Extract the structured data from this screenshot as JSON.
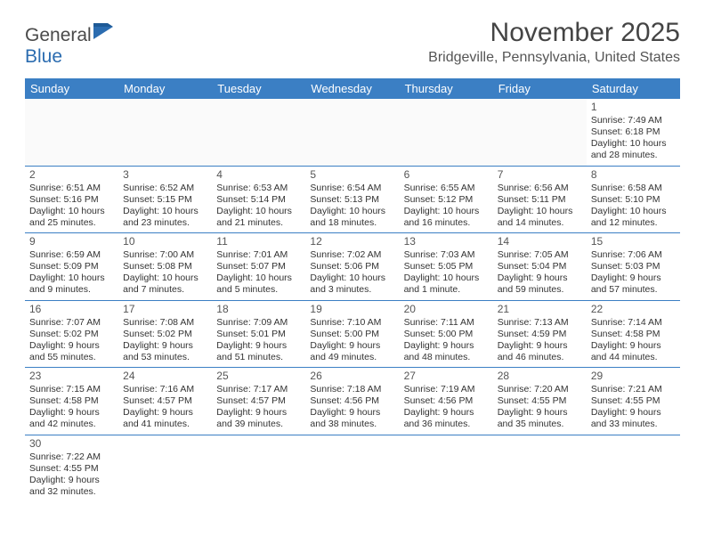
{
  "logo": {
    "text1": "General",
    "text2": "Blue"
  },
  "title": "November 2025",
  "location": "Bridgeville, Pennsylvania, United States",
  "colors": {
    "header_bg": "#3b7fc4",
    "text": "#333",
    "title": "#444"
  },
  "day_names": [
    "Sunday",
    "Monday",
    "Tuesday",
    "Wednesday",
    "Thursday",
    "Friday",
    "Saturday"
  ],
  "weeks": [
    [
      null,
      null,
      null,
      null,
      null,
      null,
      {
        "n": "1",
        "sr": "Sunrise: 7:49 AM",
        "ss": "Sunset: 6:18 PM",
        "dl": "Daylight: 10 hours and 28 minutes."
      }
    ],
    [
      {
        "n": "2",
        "sr": "Sunrise: 6:51 AM",
        "ss": "Sunset: 5:16 PM",
        "dl": "Daylight: 10 hours and 25 minutes."
      },
      {
        "n": "3",
        "sr": "Sunrise: 6:52 AM",
        "ss": "Sunset: 5:15 PM",
        "dl": "Daylight: 10 hours and 23 minutes."
      },
      {
        "n": "4",
        "sr": "Sunrise: 6:53 AM",
        "ss": "Sunset: 5:14 PM",
        "dl": "Daylight: 10 hours and 21 minutes."
      },
      {
        "n": "5",
        "sr": "Sunrise: 6:54 AM",
        "ss": "Sunset: 5:13 PM",
        "dl": "Daylight: 10 hours and 18 minutes."
      },
      {
        "n": "6",
        "sr": "Sunrise: 6:55 AM",
        "ss": "Sunset: 5:12 PM",
        "dl": "Daylight: 10 hours and 16 minutes."
      },
      {
        "n": "7",
        "sr": "Sunrise: 6:56 AM",
        "ss": "Sunset: 5:11 PM",
        "dl": "Daylight: 10 hours and 14 minutes."
      },
      {
        "n": "8",
        "sr": "Sunrise: 6:58 AM",
        "ss": "Sunset: 5:10 PM",
        "dl": "Daylight: 10 hours and 12 minutes."
      }
    ],
    [
      {
        "n": "9",
        "sr": "Sunrise: 6:59 AM",
        "ss": "Sunset: 5:09 PM",
        "dl": "Daylight: 10 hours and 9 minutes."
      },
      {
        "n": "10",
        "sr": "Sunrise: 7:00 AM",
        "ss": "Sunset: 5:08 PM",
        "dl": "Daylight: 10 hours and 7 minutes."
      },
      {
        "n": "11",
        "sr": "Sunrise: 7:01 AM",
        "ss": "Sunset: 5:07 PM",
        "dl": "Daylight: 10 hours and 5 minutes."
      },
      {
        "n": "12",
        "sr": "Sunrise: 7:02 AM",
        "ss": "Sunset: 5:06 PM",
        "dl": "Daylight: 10 hours and 3 minutes."
      },
      {
        "n": "13",
        "sr": "Sunrise: 7:03 AM",
        "ss": "Sunset: 5:05 PM",
        "dl": "Daylight: 10 hours and 1 minute."
      },
      {
        "n": "14",
        "sr": "Sunrise: 7:05 AM",
        "ss": "Sunset: 5:04 PM",
        "dl": "Daylight: 9 hours and 59 minutes."
      },
      {
        "n": "15",
        "sr": "Sunrise: 7:06 AM",
        "ss": "Sunset: 5:03 PM",
        "dl": "Daylight: 9 hours and 57 minutes."
      }
    ],
    [
      {
        "n": "16",
        "sr": "Sunrise: 7:07 AM",
        "ss": "Sunset: 5:02 PM",
        "dl": "Daylight: 9 hours and 55 minutes."
      },
      {
        "n": "17",
        "sr": "Sunrise: 7:08 AM",
        "ss": "Sunset: 5:02 PM",
        "dl": "Daylight: 9 hours and 53 minutes."
      },
      {
        "n": "18",
        "sr": "Sunrise: 7:09 AM",
        "ss": "Sunset: 5:01 PM",
        "dl": "Daylight: 9 hours and 51 minutes."
      },
      {
        "n": "19",
        "sr": "Sunrise: 7:10 AM",
        "ss": "Sunset: 5:00 PM",
        "dl": "Daylight: 9 hours and 49 minutes."
      },
      {
        "n": "20",
        "sr": "Sunrise: 7:11 AM",
        "ss": "Sunset: 5:00 PM",
        "dl": "Daylight: 9 hours and 48 minutes."
      },
      {
        "n": "21",
        "sr": "Sunrise: 7:13 AM",
        "ss": "Sunset: 4:59 PM",
        "dl": "Daylight: 9 hours and 46 minutes."
      },
      {
        "n": "22",
        "sr": "Sunrise: 7:14 AM",
        "ss": "Sunset: 4:58 PM",
        "dl": "Daylight: 9 hours and 44 minutes."
      }
    ],
    [
      {
        "n": "23",
        "sr": "Sunrise: 7:15 AM",
        "ss": "Sunset: 4:58 PM",
        "dl": "Daylight: 9 hours and 42 minutes."
      },
      {
        "n": "24",
        "sr": "Sunrise: 7:16 AM",
        "ss": "Sunset: 4:57 PM",
        "dl": "Daylight: 9 hours and 41 minutes."
      },
      {
        "n": "25",
        "sr": "Sunrise: 7:17 AM",
        "ss": "Sunset: 4:57 PM",
        "dl": "Daylight: 9 hours and 39 minutes."
      },
      {
        "n": "26",
        "sr": "Sunrise: 7:18 AM",
        "ss": "Sunset: 4:56 PM",
        "dl": "Daylight: 9 hours and 38 minutes."
      },
      {
        "n": "27",
        "sr": "Sunrise: 7:19 AM",
        "ss": "Sunset: 4:56 PM",
        "dl": "Daylight: 9 hours and 36 minutes."
      },
      {
        "n": "28",
        "sr": "Sunrise: 7:20 AM",
        "ss": "Sunset: 4:55 PM",
        "dl": "Daylight: 9 hours and 35 minutes."
      },
      {
        "n": "29",
        "sr": "Sunrise: 7:21 AM",
        "ss": "Sunset: 4:55 PM",
        "dl": "Daylight: 9 hours and 33 minutes."
      }
    ],
    [
      {
        "n": "30",
        "sr": "Sunrise: 7:22 AM",
        "ss": "Sunset: 4:55 PM",
        "dl": "Daylight: 9 hours and 32 minutes."
      },
      null,
      null,
      null,
      null,
      null,
      null
    ]
  ]
}
